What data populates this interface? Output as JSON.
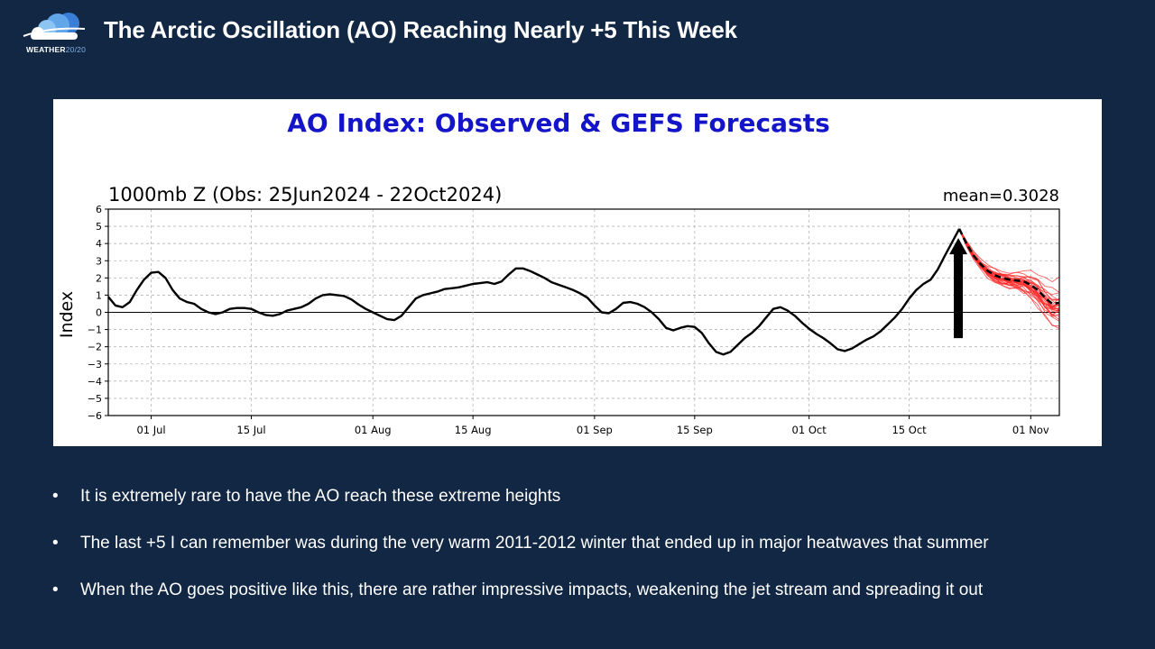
{
  "slide": {
    "title": "The Arctic Oscillation (AO) Reaching Nearly +5 This Week",
    "logo": {
      "name": "WEATHER",
      "suffix": "20/20"
    },
    "bullets": [
      "It is extremely rare to have the AO reach these extreme heights",
      "The last +5 I can remember was during the very warm 2011-2012 winter that ended up in major heatwaves that summer",
      "When the AO goes positive like this, there are rather impressive impacts, weakening the jet stream and spreading it out"
    ]
  },
  "colors": {
    "background": "#122744",
    "chart_title": "#1414c8",
    "observed": "#000000",
    "ensemble": "#ff2a2a",
    "mean": "#000000"
  },
  "chart_data": {
    "type": "line",
    "title": "AO Index: Observed & GEFS Forecasts",
    "subtitle": "1000mb Z (Obs: 25Jun2024 - 22Oct2024)",
    "mean_label": "mean=0.3028",
    "ylabel": "Index",
    "xlabel": "",
    "ylim": [
      -6,
      6
    ],
    "xlim": [
      0,
      133
    ],
    "yticks": [
      6,
      5,
      4,
      3,
      2,
      1,
      0,
      -1,
      -2,
      -3,
      -4,
      -5,
      -6
    ],
    "ytick_labels": [
      "6",
      "5",
      "4",
      "3",
      "2",
      "1",
      "0",
      "−1",
      "−2",
      "−3",
      "−4",
      "−5",
      "−6"
    ],
    "xticks": [
      {
        "day": 6,
        "label": "01 Jul"
      },
      {
        "day": 20,
        "label": "15 Jul"
      },
      {
        "day": 37,
        "label": "01 Aug"
      },
      {
        "day": 51,
        "label": "15 Aug"
      },
      {
        "day": 68,
        "label": "01 Sep"
      },
      {
        "day": 82,
        "label": "15 Sep"
      },
      {
        "day": 98,
        "label": "01 Oct"
      },
      {
        "day": 112,
        "label": "15 Oct"
      },
      {
        "day": 129,
        "label": "01 Nov"
      }
    ],
    "grid": true,
    "observed": {
      "name": "Observed",
      "x": [
        0,
        1,
        2,
        3,
        4,
        5,
        6,
        7,
        8,
        9,
        10,
        11,
        12,
        13,
        14,
        15,
        16,
        17,
        18,
        19,
        20,
        21,
        22,
        23,
        24,
        25,
        26,
        27,
        28,
        29,
        30,
        31,
        32,
        33,
        34,
        35,
        36,
        37,
        38,
        39,
        40,
        41,
        42,
        43,
        44,
        45,
        46,
        47,
        48,
        49,
        50,
        51,
        52,
        53,
        54,
        55,
        56,
        57,
        58,
        59,
        60,
        61,
        62,
        63,
        64,
        65,
        66,
        67,
        68,
        69,
        70,
        71,
        72,
        73,
        74,
        75,
        76,
        77,
        78,
        79,
        80,
        81,
        82,
        83,
        84,
        85,
        86,
        87,
        88,
        89,
        90,
        91,
        92,
        93,
        94,
        95,
        96,
        97,
        98,
        99,
        100,
        101,
        102,
        103,
        104,
        105,
        106,
        107,
        108,
        109,
        110,
        111,
        112,
        113,
        114,
        115,
        116,
        117,
        119,
        118,
        119
      ],
      "y": [
        0.9,
        0.4,
        0.3,
        0.6,
        1.3,
        1.9,
        2.3,
        2.35,
        2.0,
        1.3,
        0.8,
        0.6,
        0.5,
        0.2,
        0.0,
        -0.1,
        0.0,
        0.2,
        0.25,
        0.25,
        0.2,
        0.0,
        -0.15,
        -0.2,
        -0.1,
        0.1,
        0.2,
        0.3,
        0.5,
        0.8,
        1.0,
        1.05,
        1.0,
        0.95,
        0.75,
        0.45,
        0.2,
        0.0,
        -0.2,
        -0.4,
        -0.45,
        -0.2,
        0.3,
        0.8,
        1.0,
        1.1,
        1.2,
        1.35,
        1.4,
        1.45,
        1.55,
        1.65,
        1.7,
        1.75,
        1.65,
        1.8,
        2.2,
        2.55,
        2.55,
        2.4,
        2.2,
        2.0,
        1.75,
        1.6,
        1.45,
        1.3,
        1.1,
        0.85,
        0.4,
        0.0,
        -0.05,
        0.2,
        0.55,
        0.6,
        0.5,
        0.3,
        0.0,
        -0.4,
        -0.9,
        -1.05,
        -0.9,
        -0.8,
        -0.85,
        -1.2,
        -1.8,
        -2.3,
        -2.45,
        -2.3,
        -1.9,
        -1.5,
        -1.2,
        -0.8,
        -0.3,
        0.2,
        0.3,
        0.1,
        -0.2,
        -0.6,
        -0.95,
        -1.25,
        -1.5,
        -1.8,
        -2.15,
        -2.25,
        -2.1,
        -1.85,
        -1.6,
        -1.4,
        -1.1,
        -0.7,
        -0.3,
        0.2,
        0.8,
        1.3,
        1.65,
        1.9,
        2.5,
        3.3,
        4.85,
        3.9,
        4.85
      ]
    },
    "ensemble_mean": {
      "name": "GEFS ensemble mean",
      "x": [
        119,
        120,
        121,
        122,
        123,
        124,
        125,
        126,
        127,
        128,
        129,
        130,
        131,
        132,
        133
      ],
      "y": [
        4.85,
        4.0,
        3.3,
        2.8,
        2.4,
        2.15,
        2.0,
        1.9,
        1.85,
        1.8,
        1.6,
        1.3,
        0.85,
        0.5,
        0.55
      ]
    },
    "ensemble_member_count": 30,
    "annotation": {
      "type": "arrow",
      "x": 119,
      "y_from": -1.5,
      "y_to": 4.0,
      "color": "#000000"
    }
  }
}
